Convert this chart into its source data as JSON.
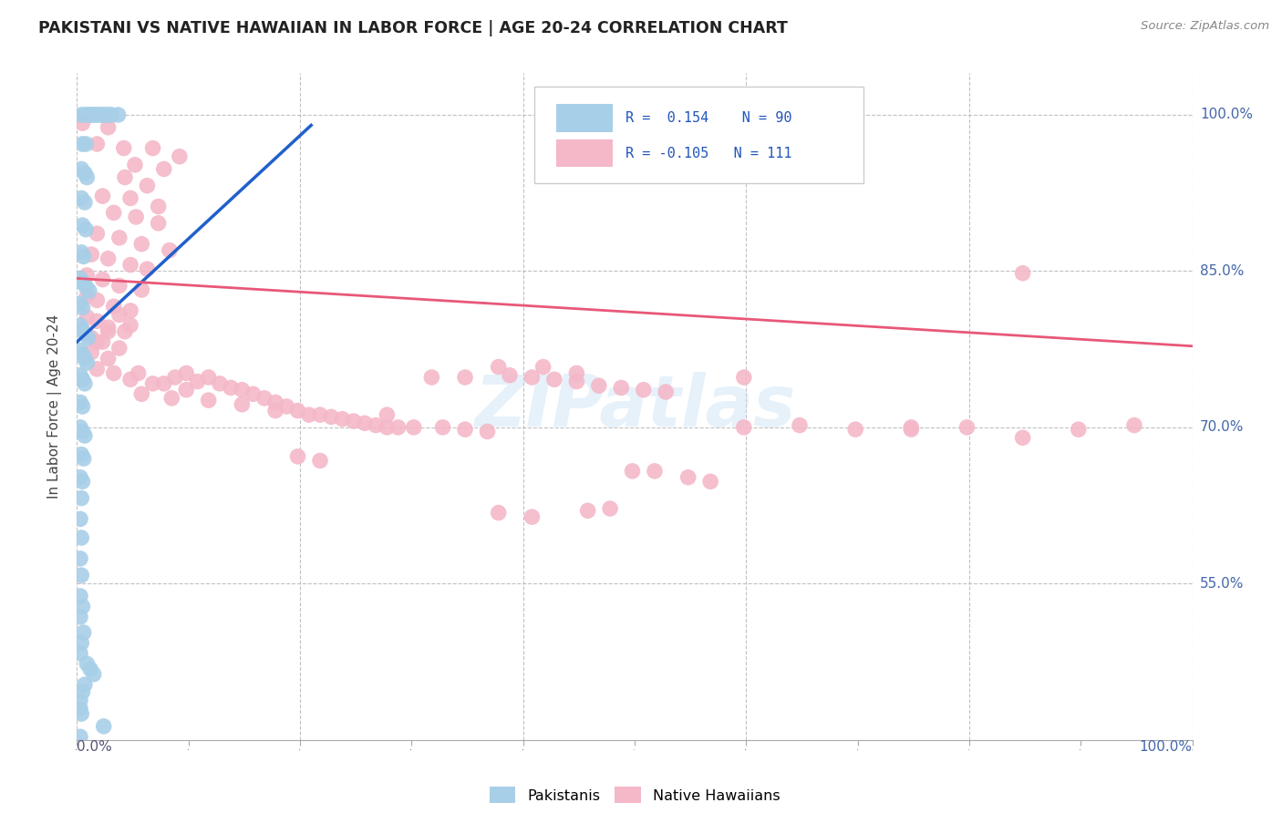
{
  "title": "PAKISTANI VS NATIVE HAWAIIAN IN LABOR FORCE | AGE 20-24 CORRELATION CHART",
  "source": "Source: ZipAtlas.com",
  "ylabel": "In Labor Force | Age 20-24",
  "ytick_labels": [
    "55.0%",
    "70.0%",
    "85.0%",
    "100.0%"
  ],
  "ytick_values": [
    0.55,
    0.7,
    0.85,
    1.0
  ],
  "xlim": [
    0.0,
    1.0
  ],
  "ylim": [
    0.4,
    1.04
  ],
  "pakistani_color": "#a8cfe8",
  "native_hawaiian_color": "#f4b8c8",
  "trend_pakistani_color": "#2060cc",
  "trend_native_hawaiian_color": "#e85878",
  "watermark": "ZIPatlas",
  "pakistani_points": [
    [
      0.004,
      1.0
    ],
    [
      0.007,
      1.0
    ],
    [
      0.009,
      1.0
    ],
    [
      0.011,
      1.0
    ],
    [
      0.013,
      1.0
    ],
    [
      0.015,
      1.0
    ],
    [
      0.017,
      1.0
    ],
    [
      0.019,
      1.0
    ],
    [
      0.021,
      1.0
    ],
    [
      0.024,
      1.0
    ],
    [
      0.026,
      1.0
    ],
    [
      0.029,
      1.0
    ],
    [
      0.031,
      1.0
    ],
    [
      0.037,
      1.0
    ],
    [
      0.005,
      0.972
    ],
    [
      0.008,
      0.972
    ],
    [
      0.004,
      0.948
    ],
    [
      0.007,
      0.944
    ],
    [
      0.009,
      0.94
    ],
    [
      0.004,
      0.92
    ],
    [
      0.007,
      0.916
    ],
    [
      0.005,
      0.894
    ],
    [
      0.008,
      0.89
    ],
    [
      0.004,
      0.868
    ],
    [
      0.006,
      0.864
    ],
    [
      0.003,
      0.843
    ],
    [
      0.005,
      0.839
    ],
    [
      0.008,
      0.835
    ],
    [
      0.011,
      0.831
    ],
    [
      0.003,
      0.819
    ],
    [
      0.005,
      0.815
    ],
    [
      0.003,
      0.798
    ],
    [
      0.005,
      0.794
    ],
    [
      0.007,
      0.79
    ],
    [
      0.01,
      0.786
    ],
    [
      0.003,
      0.774
    ],
    [
      0.005,
      0.77
    ],
    [
      0.007,
      0.766
    ],
    [
      0.009,
      0.762
    ],
    [
      0.003,
      0.75
    ],
    [
      0.005,
      0.746
    ],
    [
      0.007,
      0.742
    ],
    [
      0.003,
      0.724
    ],
    [
      0.005,
      0.72
    ],
    [
      0.003,
      0.7
    ],
    [
      0.005,
      0.696
    ],
    [
      0.007,
      0.692
    ],
    [
      0.004,
      0.674
    ],
    [
      0.006,
      0.67
    ],
    [
      0.003,
      0.652
    ],
    [
      0.005,
      0.648
    ],
    [
      0.004,
      0.632
    ],
    [
      0.003,
      0.612
    ],
    [
      0.004,
      0.594
    ],
    [
      0.003,
      0.574
    ],
    [
      0.004,
      0.558
    ],
    [
      0.003,
      0.538
    ],
    [
      0.005,
      0.528
    ],
    [
      0.003,
      0.518
    ],
    [
      0.006,
      0.503
    ],
    [
      0.004,
      0.493
    ],
    [
      0.003,
      0.483
    ],
    [
      0.009,
      0.473
    ],
    [
      0.012,
      0.468
    ],
    [
      0.015,
      0.463
    ],
    [
      0.007,
      0.453
    ],
    [
      0.005,
      0.446
    ],
    [
      0.003,
      0.438
    ],
    [
      0.003,
      0.43
    ],
    [
      0.024,
      0.413
    ],
    [
      0.003,
      0.403
    ],
    [
      0.006,
      0.393
    ],
    [
      0.004,
      0.425
    ]
  ],
  "native_hawaiian_points": [
    [
      0.005,
      0.992
    ],
    [
      0.028,
      0.988
    ],
    [
      0.018,
      0.972
    ],
    [
      0.042,
      0.968
    ],
    [
      0.068,
      0.968
    ],
    [
      0.092,
      0.96
    ],
    [
      0.052,
      0.952
    ],
    [
      0.078,
      0.948
    ],
    [
      0.043,
      0.94
    ],
    [
      0.063,
      0.932
    ],
    [
      0.023,
      0.922
    ],
    [
      0.048,
      0.92
    ],
    [
      0.073,
      0.912
    ],
    [
      0.033,
      0.906
    ],
    [
      0.053,
      0.902
    ],
    [
      0.073,
      0.896
    ],
    [
      0.018,
      0.886
    ],
    [
      0.038,
      0.882
    ],
    [
      0.058,
      0.876
    ],
    [
      0.083,
      0.87
    ],
    [
      0.013,
      0.866
    ],
    [
      0.028,
      0.862
    ],
    [
      0.048,
      0.856
    ],
    [
      0.063,
      0.852
    ],
    [
      0.009,
      0.846
    ],
    [
      0.023,
      0.842
    ],
    [
      0.038,
      0.836
    ],
    [
      0.058,
      0.832
    ],
    [
      0.009,
      0.826
    ],
    [
      0.018,
      0.822
    ],
    [
      0.033,
      0.816
    ],
    [
      0.048,
      0.812
    ],
    [
      0.009,
      0.806
    ],
    [
      0.018,
      0.802
    ],
    [
      0.028,
      0.796
    ],
    [
      0.043,
      0.792
    ],
    [
      0.013,
      0.786
    ],
    [
      0.023,
      0.782
    ],
    [
      0.038,
      0.776
    ],
    [
      0.013,
      0.772
    ],
    [
      0.028,
      0.766
    ],
    [
      0.018,
      0.756
    ],
    [
      0.033,
      0.752
    ],
    [
      0.048,
      0.746
    ],
    [
      0.078,
      0.742
    ],
    [
      0.098,
      0.736
    ],
    [
      0.058,
      0.732
    ],
    [
      0.118,
      0.726
    ],
    [
      0.148,
      0.722
    ],
    [
      0.178,
      0.716
    ],
    [
      0.038,
      0.808
    ],
    [
      0.048,
      0.798
    ],
    [
      0.028,
      0.792
    ],
    [
      0.018,
      0.782
    ],
    [
      0.055,
      0.752
    ],
    [
      0.068,
      0.742
    ],
    [
      0.085,
      0.728
    ],
    [
      0.088,
      0.748
    ],
    [
      0.098,
      0.752
    ],
    [
      0.108,
      0.744
    ],
    [
      0.118,
      0.748
    ],
    [
      0.128,
      0.742
    ],
    [
      0.138,
      0.738
    ],
    [
      0.148,
      0.736
    ],
    [
      0.158,
      0.732
    ],
    [
      0.168,
      0.728
    ],
    [
      0.178,
      0.724
    ],
    [
      0.188,
      0.72
    ],
    [
      0.198,
      0.716
    ],
    [
      0.208,
      0.712
    ],
    [
      0.218,
      0.712
    ],
    [
      0.228,
      0.71
    ],
    [
      0.238,
      0.708
    ],
    [
      0.248,
      0.706
    ],
    [
      0.258,
      0.704
    ],
    [
      0.268,
      0.702
    ],
    [
      0.278,
      0.7
    ],
    [
      0.288,
      0.7
    ],
    [
      0.302,
      0.7
    ],
    [
      0.328,
      0.7
    ],
    [
      0.348,
      0.698
    ],
    [
      0.368,
      0.696
    ],
    [
      0.388,
      0.75
    ],
    [
      0.408,
      0.748
    ],
    [
      0.428,
      0.746
    ],
    [
      0.448,
      0.744
    ],
    [
      0.468,
      0.74
    ],
    [
      0.488,
      0.738
    ],
    [
      0.508,
      0.736
    ],
    [
      0.528,
      0.734
    ],
    [
      0.458,
      0.62
    ],
    [
      0.478,
      0.622
    ],
    [
      0.378,
      0.618
    ],
    [
      0.408,
      0.614
    ],
    [
      0.198,
      0.672
    ],
    [
      0.218,
      0.668
    ],
    [
      0.278,
      0.712
    ],
    [
      0.318,
      0.748
    ],
    [
      0.348,
      0.748
    ],
    [
      0.378,
      0.758
    ],
    [
      0.418,
      0.758
    ],
    [
      0.448,
      0.752
    ],
    [
      0.498,
      0.658
    ],
    [
      0.518,
      0.658
    ],
    [
      0.548,
      0.652
    ],
    [
      0.568,
      0.648
    ],
    [
      0.598,
      0.748
    ],
    [
      0.598,
      0.7
    ],
    [
      0.648,
      0.702
    ],
    [
      0.698,
      0.698
    ],
    [
      0.748,
      0.698
    ],
    [
      0.748,
      0.7
    ],
    [
      0.798,
      0.7
    ],
    [
      0.848,
      0.848
    ],
    [
      0.848,
      0.69
    ],
    [
      0.898,
      0.698
    ],
    [
      0.948,
      0.702
    ]
  ],
  "pakistani_trend_x": [
    0.0,
    0.21
  ],
  "pakistani_trend_y": [
    0.782,
    0.99
  ],
  "native_hawaiian_trend_x": [
    0.0,
    1.0
  ],
  "native_hawaiian_trend_y": [
    0.843,
    0.778
  ]
}
